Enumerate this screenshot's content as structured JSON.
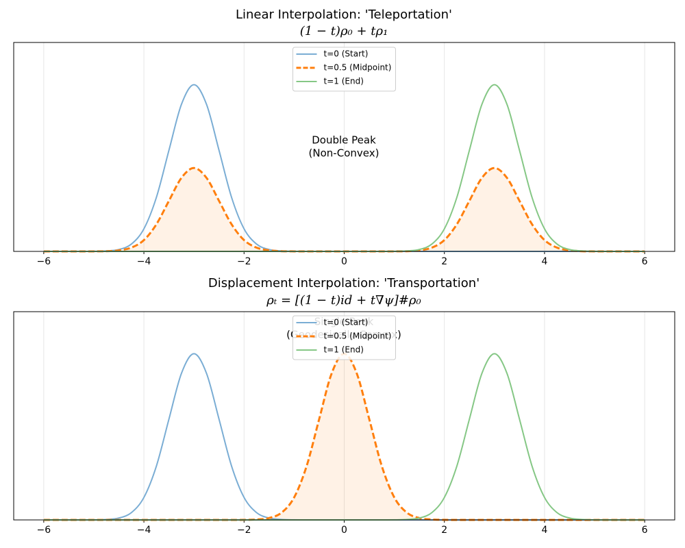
{
  "chart_data": [
    {
      "type": "line",
      "title": "Linear Interpolation: 'Teleportation'",
      "subtitle": "(1 − t)ρ₀ + tρ₁",
      "x": [
        -6,
        -5.75,
        -5.5,
        -5.25,
        -5,
        -4.75,
        -4.5,
        -4.25,
        -4,
        -3.75,
        -3.5,
        -3.25,
        -3,
        -2.75,
        -2.5,
        -2.25,
        -2,
        -1.75,
        -1.5,
        -1.25,
        -1,
        -0.75,
        -0.5,
        -0.25,
        0,
        0.25,
        0.5,
        0.75,
        1,
        1.25,
        1.5,
        1.75,
        2,
        2.25,
        2.5,
        2.75,
        3,
        3.25,
        3.5,
        3.75,
        4,
        4.25,
        4.5,
        4.75,
        5,
        5.25,
        5.5,
        5.75,
        6
      ],
      "series": [
        {
          "name": "t=0 (Start)",
          "color": "#7aadd4",
          "dashed": false,
          "filled": false,
          "values": [
            0,
            0,
            0,
            0,
            0.0003,
            0.002,
            0.009,
            0.035,
            0.108,
            0.259,
            0.484,
            0.704,
            0.798,
            0.704,
            0.484,
            0.259,
            0.108,
            0.035,
            0.009,
            0.002,
            0.0003,
            0,
            0,
            0,
            0,
            0,
            0,
            0,
            0,
            0,
            0,
            0,
            0,
            0,
            0,
            0,
            0,
            0,
            0,
            0,
            0,
            0,
            0,
            0,
            0,
            0,
            0,
            0,
            0
          ]
        },
        {
          "name": "t=0.5 (Midpoint)",
          "color": "#ff7f0e",
          "dashed": true,
          "filled": true,
          "values": [
            0,
            0,
            0,
            0,
            0.0002,
            0.001,
            0.005,
            0.018,
            0.054,
            0.13,
            0.242,
            0.352,
            0.399,
            0.352,
            0.242,
            0.13,
            0.054,
            0.018,
            0.005,
            0.001,
            0.0002,
            0,
            0,
            0,
            0,
            0,
            0,
            0,
            0.0002,
            0.001,
            0.005,
            0.018,
            0.054,
            0.13,
            0.242,
            0.352,
            0.399,
            0.352,
            0.242,
            0.13,
            0.054,
            0.018,
            0.005,
            0.001,
            0.0002,
            0,
            0,
            0,
            0
          ]
        },
        {
          "name": "t=1 (End)",
          "color": "#85c785",
          "dashed": false,
          "filled": false,
          "values": [
            0,
            0,
            0,
            0,
            0,
            0,
            0,
            0,
            0,
            0,
            0,
            0,
            0,
            0,
            0,
            0,
            0,
            0,
            0,
            0,
            0,
            0,
            0,
            0,
            0,
            0,
            0,
            0,
            0.0003,
            0.002,
            0.009,
            0.035,
            0.108,
            0.259,
            0.484,
            0.704,
            0.798,
            0.704,
            0.484,
            0.259,
            0.108,
            0.035,
            0.009,
            0.002,
            0.0003,
            0,
            0,
            0,
            0
          ]
        }
      ],
      "annotation": {
        "lines": [
          "Double Peak",
          "(Non-Convex)"
        ],
        "color": "#e8000b"
      },
      "xlim": [
        -6.6,
        6.6
      ],
      "ylim": [
        0,
        1
      ],
      "xticks": [
        {
          "value": -6,
          "label": "−6"
        },
        {
          "value": -4,
          "label": "−4"
        },
        {
          "value": -2,
          "label": "−2"
        },
        0,
        2,
        4,
        6
      ],
      "grid": true,
      "legend": "upper center"
    },
    {
      "type": "line",
      "title": "Displacement Interpolation: 'Transportation'",
      "subtitle": "ρₜ = [(1 − t)id + t∇ψ]#ρ₀",
      "x": [
        -6,
        -5.75,
        -5.5,
        -5.25,
        -5,
        -4.75,
        -4.5,
        -4.25,
        -4,
        -3.75,
        -3.5,
        -3.25,
        -3,
        -2.75,
        -2.5,
        -2.25,
        -2,
        -1.75,
        -1.5,
        -1.25,
        -1,
        -0.75,
        -0.5,
        -0.25,
        0,
        0.25,
        0.5,
        0.75,
        1,
        1.25,
        1.5,
        1.75,
        2,
        2.25,
        2.5,
        2.75,
        3,
        3.25,
        3.5,
        3.75,
        4,
        4.25,
        4.5,
        4.75,
        5,
        5.25,
        5.5,
        5.75,
        6
      ],
      "series": [
        {
          "name": "t=0 (Start)",
          "color": "#7aadd4",
          "dashed": false,
          "filled": false,
          "values": [
            0,
            0,
            0,
            0,
            0.0003,
            0.002,
            0.009,
            0.035,
            0.108,
            0.259,
            0.484,
            0.704,
            0.798,
            0.704,
            0.484,
            0.259,
            0.108,
            0.035,
            0.009,
            0.002,
            0.0003,
            0,
            0,
            0,
            0,
            0,
            0,
            0,
            0,
            0,
            0,
            0,
            0,
            0,
            0,
            0,
            0,
            0,
            0,
            0,
            0,
            0,
            0,
            0,
            0,
            0,
            0,
            0,
            0
          ]
        },
        {
          "name": "t=0.5 (Midpoint)",
          "color": "#ff7f0e",
          "dashed": true,
          "filled": true,
          "values": [
            0,
            0,
            0,
            0,
            0,
            0,
            0,
            0,
            0,
            0,
            0,
            0,
            0,
            0,
            0,
            0,
            0.0003,
            0.002,
            0.009,
            0.035,
            0.108,
            0.259,
            0.484,
            0.704,
            0.798,
            0.704,
            0.484,
            0.259,
            0.108,
            0.035,
            0.009,
            0.002,
            0.0003,
            0,
            0,
            0,
            0,
            0,
            0,
            0,
            0,
            0,
            0,
            0,
            0,
            0,
            0,
            0,
            0
          ]
        },
        {
          "name": "t=1 (End)",
          "color": "#85c785",
          "dashed": false,
          "filled": false,
          "values": [
            0,
            0,
            0,
            0,
            0,
            0,
            0,
            0,
            0,
            0,
            0,
            0,
            0,
            0,
            0,
            0,
            0,
            0,
            0,
            0,
            0,
            0,
            0,
            0,
            0,
            0,
            0,
            0,
            0.0003,
            0.002,
            0.009,
            0.035,
            0.108,
            0.259,
            0.484,
            0.704,
            0.798,
            0.704,
            0.484,
            0.259,
            0.108,
            0.035,
            0.009,
            0.002,
            0.0003,
            0,
            0,
            0,
            0
          ]
        }
      ],
      "annotation": {
        "lines": [
          "Single Peak",
          "(Geodesically Convex)"
        ],
        "color": "#9fd49f"
      },
      "xlim": [
        -6.6,
        6.6
      ],
      "ylim": [
        0,
        1
      ],
      "xticks": [
        {
          "value": -6,
          "label": "−6"
        },
        {
          "value": -4,
          "label": "−4"
        },
        {
          "value": -2,
          "label": "−2"
        },
        0,
        2,
        4,
        6
      ],
      "grid": true,
      "legend": "upper center"
    }
  ]
}
